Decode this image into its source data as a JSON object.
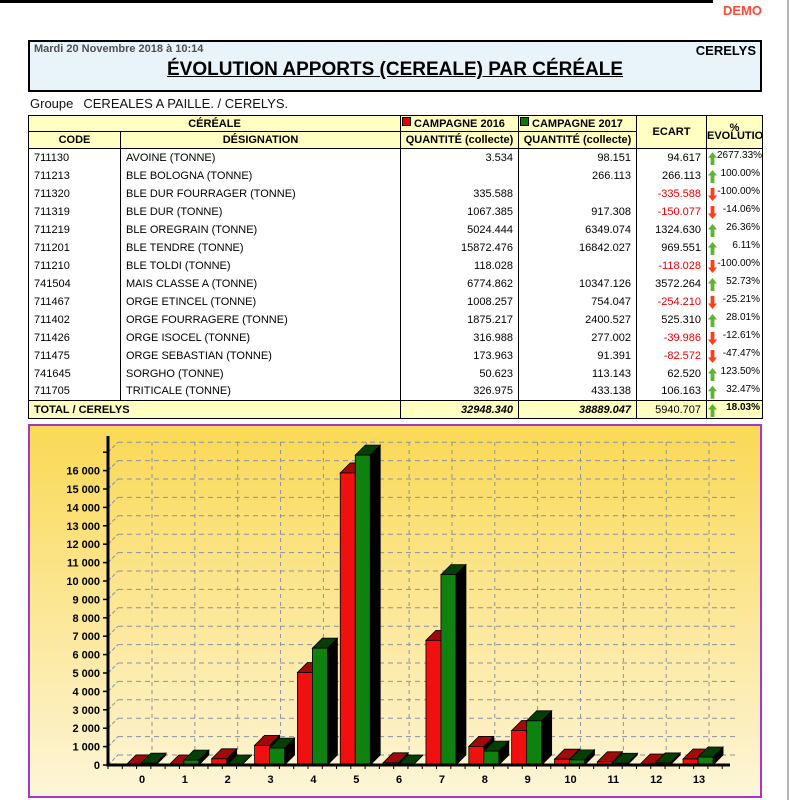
{
  "page": {
    "demo_label": "DEMO"
  },
  "header": {
    "datetime": "Mardi 20 Novembre 2018 à 10:14",
    "company": "CERELYS",
    "title": "ÉVOLUTION APPORTS  (CEREALE) PAR CÉRÉALE"
  },
  "group": {
    "label": "Groupe",
    "value": "CEREALES A PAILLE. / CERELYS."
  },
  "table": {
    "headers": {
      "cereale": "CÉRÉALE",
      "code": "CODE",
      "designation": "DÉSIGNATION",
      "campagne_2016": "CAMPAGNE 2016",
      "campagne_2017": "CAMPAGNE 2017",
      "quantite": "QUANTITÉ  (collecte)",
      "ecart": "ECART",
      "evolution": "%\nEVOLUTION"
    },
    "legend": {
      "campagne_2016_color": "#e80000",
      "campagne_2017_color": "#0b7a0b"
    },
    "rows": [
      {
        "code": "711130",
        "designation": "AVOINE (TONNE)",
        "q2016": "3.534",
        "q2017": "98.151",
        "ecart": "94.617",
        "evolution": "2677.33%",
        "trend": "up"
      },
      {
        "code": "711213",
        "designation": "BLE BOLOGNA (TONNE)",
        "q2016": "",
        "q2017": "266.113",
        "ecart": "266.113",
        "evolution": "100.00%",
        "trend": "up"
      },
      {
        "code": "711320",
        "designation": "BLE DUR FOURRAGER (TONNE)",
        "q2016": "335.588",
        "q2017": "",
        "ecart": "-335.588",
        "evolution": "-100.00%",
        "trend": "down"
      },
      {
        "code": "711319",
        "designation": "BLE DUR (TONNE)",
        "q2016": "1067.385",
        "q2017": "917.308",
        "ecart": "-150.077",
        "evolution": "-14.06%",
        "trend": "down"
      },
      {
        "code": "711219",
        "designation": "BLE OREGRAIN (TONNE)",
        "q2016": "5024.444",
        "q2017": "6349.074",
        "ecart": "1324.630",
        "evolution": "26.36%",
        "trend": "up"
      },
      {
        "code": "711201",
        "designation": "BLE TENDRE (TONNE)",
        "q2016": "15872.476",
        "q2017": "16842.027",
        "ecart": "969.551",
        "evolution": "6.11%",
        "trend": "up"
      },
      {
        "code": "711210",
        "designation": "BLE TOLDI (TONNE)",
        "q2016": "118.028",
        "q2017": "",
        "ecart": "-118.028",
        "evolution": "-100.00%",
        "trend": "down"
      },
      {
        "code": "741504",
        "designation": "MAIS CLASSE A (TONNE)",
        "q2016": "6774.862",
        "q2017": "10347.126",
        "ecart": "3572.264",
        "evolution": "52.73%",
        "trend": "up"
      },
      {
        "code": "711467",
        "designation": "ORGE ETINCEL (TONNE)",
        "q2016": "1008.257",
        "q2017": "754.047",
        "ecart": "-254.210",
        "evolution": "-25.21%",
        "trend": "down"
      },
      {
        "code": "711402",
        "designation": "ORGE FOURRAGERE (TONNE)",
        "q2016": "1875.217",
        "q2017": "2400.527",
        "ecart": "525.310",
        "evolution": "28.01%",
        "trend": "up"
      },
      {
        "code": "711426",
        "designation": "ORGE ISOCEL (TONNE)",
        "q2016": "316.988",
        "q2017": "277.002",
        "ecart": "-39.986",
        "evolution": "-12.61%",
        "trend": "down"
      },
      {
        "code": "711475",
        "designation": "ORGE SEBASTIAN (TONNE)",
        "q2016": "173.963",
        "q2017": "91.391",
        "ecart": "-82.572",
        "evolution": "-47.47%",
        "trend": "down"
      },
      {
        "code": "741645",
        "designation": "SORGHO (TONNE)",
        "q2016": "50.623",
        "q2017": "113.143",
        "ecart": "62.520",
        "evolution": "123.50%",
        "trend": "up"
      },
      {
        "code": "711705",
        "designation": "TRITICALE (TONNE)",
        "q2016": "326.975",
        "q2017": "433.138",
        "ecart": "106.163",
        "evolution": "32.47%",
        "trend": "up"
      }
    ],
    "total": {
      "label": "TOTAL / CERELYS",
      "q2016": "32948.340",
      "q2017": "38889.047",
      "ecart": "5940.707",
      "evolution": "18.03%",
      "trend": "up"
    }
  },
  "chart_data": {
    "type": "bar",
    "style": "3d-column",
    "categories": [
      "0",
      "1",
      "2",
      "3",
      "4",
      "5",
      "6",
      "7",
      "8",
      "9",
      "10",
      "11",
      "12",
      "13"
    ],
    "series": [
      {
        "name": "CAMPAGNE 2016",
        "color": "#f01010",
        "color_dark": "#a00a0a",
        "values": [
          3.534,
          0,
          335.588,
          1067.385,
          5024.444,
          15872.476,
          118.028,
          6774.862,
          1008.257,
          1875.217,
          316.988,
          173.963,
          50.623,
          326.975
        ]
      },
      {
        "name": "CAMPAGNE 2017",
        "color": "#0e810e",
        "color_dark": "#063f06",
        "values": [
          98.151,
          266.113,
          0,
          917.308,
          6349.074,
          16842.027,
          0,
          10347.126,
          754.047,
          2400.527,
          277.002,
          91.391,
          113.143,
          433.138
        ]
      }
    ],
    "ylim": [
      0,
      17000
    ],
    "ytick_step": 1000,
    "ytick_labels": [
      "0",
      "1 000",
      "2 000",
      "3 000",
      "4 000",
      "5 000",
      "6 000",
      "7 000",
      "8 000",
      "9 000",
      "10 000",
      "11 000",
      "12 000",
      "13 000",
      "14 000",
      "15 000",
      "16 000"
    ],
    "grid": true,
    "legend_position": "table-header",
    "background_gradient": [
      "#fad955",
      "#fdf5d8"
    ],
    "border_color": "#a438c8",
    "side_color": "#000000"
  }
}
